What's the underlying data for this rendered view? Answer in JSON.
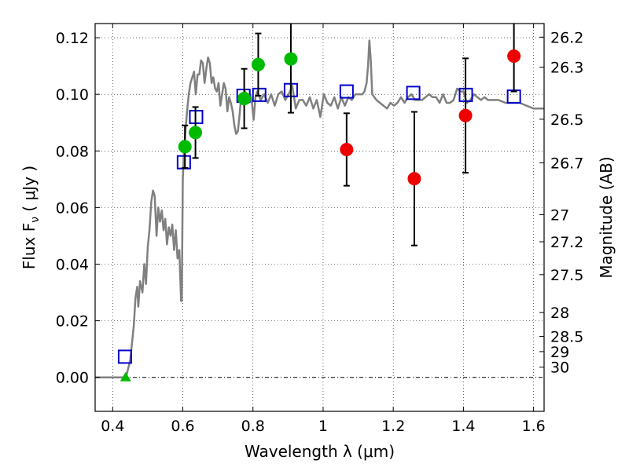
{
  "chart_data": {
    "type": "scatter",
    "xlabel": "Wavelength  λ (μm)",
    "ylabel": "Flux  F",
    "ylabel_sub": "ν",
    "ylabel_unit": "  ( μJy )",
    "y2label": "Magnitude (AB)",
    "xlim": [
      0.35,
      1.63
    ],
    "ylim": [
      -0.012,
      0.125
    ],
    "grid": true,
    "x_ticks": [
      {
        "value": 0.4,
        "label": "0.4"
      },
      {
        "value": 0.6,
        "label": "0.6"
      },
      {
        "value": 0.8,
        "label": "0.8"
      },
      {
        "value": 1.0,
        "label": "1"
      },
      {
        "value": 1.2,
        "label": "1.2"
      },
      {
        "value": 1.4,
        "label": "1.4"
      },
      {
        "value": 1.6,
        "label": "1.6"
      }
    ],
    "y_ticks": [
      {
        "value": 0.0,
        "label": "0.00"
      },
      {
        "value": 0.02,
        "label": "0.02"
      },
      {
        "value": 0.04,
        "label": "0.04"
      },
      {
        "value": 0.06,
        "label": "0.06"
      },
      {
        "value": 0.08,
        "label": "0.08"
      },
      {
        "value": 0.1,
        "label": "0.10"
      },
      {
        "value": 0.12,
        "label": "0.12"
      }
    ],
    "mag_ticks": [
      {
        "label": "26.2",
        "flux": 0.1202
      },
      {
        "label": "26.3",
        "flux": 0.1096
      },
      {
        "label": "26.5",
        "flux": 0.0912
      },
      {
        "label": "26.7",
        "flux": 0.0758
      },
      {
        "label": "27",
        "flux": 0.0575
      },
      {
        "label": "27.2",
        "flux": 0.0479
      },
      {
        "label": "27.5",
        "flux": 0.0363
      },
      {
        "label": "28",
        "flux": 0.0229
      },
      {
        "label": "28.5",
        "flux": 0.0145
      },
      {
        "label": "29",
        "flux": 0.0091
      },
      {
        "label": "30",
        "flux": 0.0036
      }
    ],
    "series": [
      {
        "style": "line",
        "color": "#808080",
        "points": [
          [
            0.35,
            0.0
          ],
          [
            0.43,
            0.0
          ],
          [
            0.44,
            0.001
          ],
          [
            0.45,
            0.006
          ],
          [
            0.46,
            0.018
          ],
          [
            0.465,
            0.028
          ],
          [
            0.47,
            0.032
          ],
          [
            0.473,
            0.025
          ],
          [
            0.478,
            0.034
          ],
          [
            0.485,
            0.03
          ],
          [
            0.49,
            0.04
          ],
          [
            0.495,
            0.033
          ],
          [
            0.5,
            0.046
          ],
          [
            0.505,
            0.052
          ],
          [
            0.51,
            0.062
          ],
          [
            0.515,
            0.066
          ],
          [
            0.52,
            0.064
          ],
          [
            0.525,
            0.05
          ],
          [
            0.53,
            0.06
          ],
          [
            0.535,
            0.055
          ],
          [
            0.54,
            0.059
          ],
          [
            0.545,
            0.052
          ],
          [
            0.55,
            0.056
          ],
          [
            0.555,
            0.047
          ],
          [
            0.56,
            0.053
          ],
          [
            0.565,
            0.05
          ],
          [
            0.57,
            0.054
          ],
          [
            0.575,
            0.045
          ],
          [
            0.58,
            0.052
          ],
          [
            0.585,
            0.042
          ],
          [
            0.59,
            0.045
          ],
          [
            0.595,
            0.027
          ],
          [
            0.597,
            0.027
          ],
          [
            0.6,
            0.07
          ],
          [
            0.603,
            0.079
          ],
          [
            0.607,
            0.086
          ],
          [
            0.612,
            0.094
          ],
          [
            0.617,
            0.1
          ],
          [
            0.622,
            0.104
          ],
          [
            0.627,
            0.106
          ],
          [
            0.632,
            0.108
          ],
          [
            0.637,
            0.1
          ],
          [
            0.642,
            0.107
          ],
          [
            0.647,
            0.107
          ],
          [
            0.652,
            0.112
          ],
          [
            0.657,
            0.111
          ],
          [
            0.662,
            0.104
          ],
          [
            0.667,
            0.109
          ],
          [
            0.672,
            0.113
          ],
          [
            0.677,
            0.111
          ],
          [
            0.682,
            0.104
          ],
          [
            0.687,
            0.106
          ],
          [
            0.692,
            0.102
          ],
          [
            0.697,
            0.101
          ],
          [
            0.702,
            0.104
          ],
          [
            0.707,
            0.096
          ],
          [
            0.712,
            0.1
          ],
          [
            0.717,
            0.104
          ],
          [
            0.722,
            0.102
          ],
          [
            0.727,
            0.094
          ],
          [
            0.732,
            0.099
          ],
          [
            0.737,
            0.097
          ],
          [
            0.742,
            0.094
          ],
          [
            0.747,
            0.089
          ],
          [
            0.752,
            0.086
          ],
          [
            0.757,
            0.087
          ],
          [
            0.762,
            0.093
          ],
          [
            0.767,
            0.1
          ],
          [
            0.772,
            0.097
          ],
          [
            0.777,
            0.101
          ],
          [
            0.782,
            0.1
          ],
          [
            0.787,
            0.097
          ],
          [
            0.792,
            0.1
          ],
          [
            0.797,
            0.097
          ],
          [
            0.802,
            0.091
          ],
          [
            0.807,
            0.099
          ],
          [
            0.812,
            0.101
          ],
          [
            0.822,
            0.098
          ],
          [
            0.832,
            0.1
          ],
          [
            0.842,
            0.097
          ],
          [
            0.852,
            0.1
          ],
          [
            0.862,
            0.096
          ],
          [
            0.872,
            0.1
          ],
          [
            0.882,
            0.101
          ],
          [
            0.892,
            0.098
          ],
          [
            0.902,
            0.1
          ],
          [
            0.912,
            0.103
          ],
          [
            0.922,
            0.095
          ],
          [
            0.932,
            0.098
          ],
          [
            0.942,
            0.098
          ],
          [
            0.952,
            0.096
          ],
          [
            0.962,
            0.099
          ],
          [
            0.972,
            0.095
          ],
          [
            0.982,
            0.098
          ],
          [
            0.992,
            0.092
          ],
          [
            1.002,
            0.1
          ],
          [
            1.012,
            0.097
          ],
          [
            1.022,
            0.096
          ],
          [
            1.032,
            0.099
          ],
          [
            1.042,
            0.095
          ],
          [
            1.052,
            0.099
          ],
          [
            1.062,
            0.096
          ],
          [
            1.072,
            0.099
          ],
          [
            1.082,
            0.098
          ],
          [
            1.092,
            0.1
          ],
          [
            1.102,
            0.1
          ],
          [
            1.112,
            0.1
          ],
          [
            1.118,
            0.101
          ],
          [
            1.124,
            0.104
          ],
          [
            1.128,
            0.11
          ],
          [
            1.132,
            0.119
          ],
          [
            1.136,
            0.112
          ],
          [
            1.14,
            0.1
          ],
          [
            1.146,
            0.099
          ],
          [
            1.152,
            0.098
          ],
          [
            1.162,
            0.097
          ],
          [
            1.172,
            0.096
          ],
          [
            1.182,
            0.095
          ],
          [
            1.192,
            0.097
          ],
          [
            1.202,
            0.096
          ],
          [
            1.212,
            0.097
          ],
          [
            1.222,
            0.099
          ],
          [
            1.232,
            0.097
          ],
          [
            1.242,
            0.099
          ],
          [
            1.252,
            0.1
          ],
          [
            1.262,
            0.098
          ],
          [
            1.272,
            0.098
          ],
          [
            1.282,
            0.098
          ],
          [
            1.292,
            0.099
          ],
          [
            1.302,
            0.1
          ],
          [
            1.312,
            0.099
          ],
          [
            1.322,
            0.099
          ],
          [
            1.332,
            0.097
          ],
          [
            1.342,
            0.1
          ],
          [
            1.352,
            0.097
          ],
          [
            1.362,
            0.097
          ],
          [
            1.372,
            0.098
          ],
          [
            1.382,
            0.102
          ],
          [
            1.392,
            0.101
          ],
          [
            1.4,
            0.101
          ],
          [
            1.41,
            0.097
          ],
          [
            1.42,
            0.098
          ],
          [
            1.43,
            0.1
          ],
          [
            1.44,
            0.099
          ],
          [
            1.45,
            0.098
          ],
          [
            1.46,
            0.099
          ],
          [
            1.47,
            0.098
          ],
          [
            1.48,
            0.098
          ],
          [
            1.49,
            0.098
          ],
          [
            1.5,
            0.098
          ],
          [
            1.52,
            0.097
          ],
          [
            1.54,
            0.097
          ],
          [
            1.56,
            0.097
          ],
          [
            1.58,
            0.096
          ],
          [
            1.6,
            0.095
          ],
          [
            1.63,
            0.095
          ]
        ]
      },
      {
        "style": "marker",
        "marker": "square-open",
        "color": "#0000cc",
        "points": [
          [
            0.435,
            0.0073
          ],
          [
            0.603,
            0.076
          ],
          [
            0.638,
            0.092
          ],
          [
            0.773,
            0.0995
          ],
          [
            0.818,
            0.0998
          ],
          [
            0.908,
            0.1015
          ],
          [
            1.067,
            0.101
          ],
          [
            1.257,
            0.1005
          ],
          [
            1.407,
            0.0998
          ],
          [
            1.544,
            0.0992
          ]
        ]
      },
      {
        "style": "marker",
        "marker": "circle",
        "color": "#00bb00",
        "points": [
          {
            "x": 0.606,
            "y": 0.0815,
            "yerr": 0.0075
          },
          {
            "x": 0.636,
            "y": 0.0865,
            "yerr": 0.009
          },
          {
            "x": 0.775,
            "y": 0.0985,
            "yerr": 0.0105
          },
          {
            "x": 0.815,
            "y": 0.1105,
            "yerr": 0.011
          },
          {
            "x": 0.908,
            "y": 0.1125,
            "yerr": 0.019
          }
        ]
      },
      {
        "style": "marker",
        "marker": "circle",
        "color": "#ee0000",
        "points": [
          {
            "x": 1.067,
            "y": 0.0805,
            "yerr": 0.0128
          },
          {
            "x": 1.26,
            "y": 0.0702,
            "yerr": 0.0236
          },
          {
            "x": 1.406,
            "y": 0.0925,
            "yerr": 0.0202
          },
          {
            "x": 1.544,
            "y": 0.1135,
            "yerr": 0.0125
          }
        ]
      },
      {
        "style": "marker",
        "marker": "triangle",
        "color": "#00bb00",
        "points": [
          [
            0.437,
            0.0
          ]
        ]
      }
    ]
  }
}
